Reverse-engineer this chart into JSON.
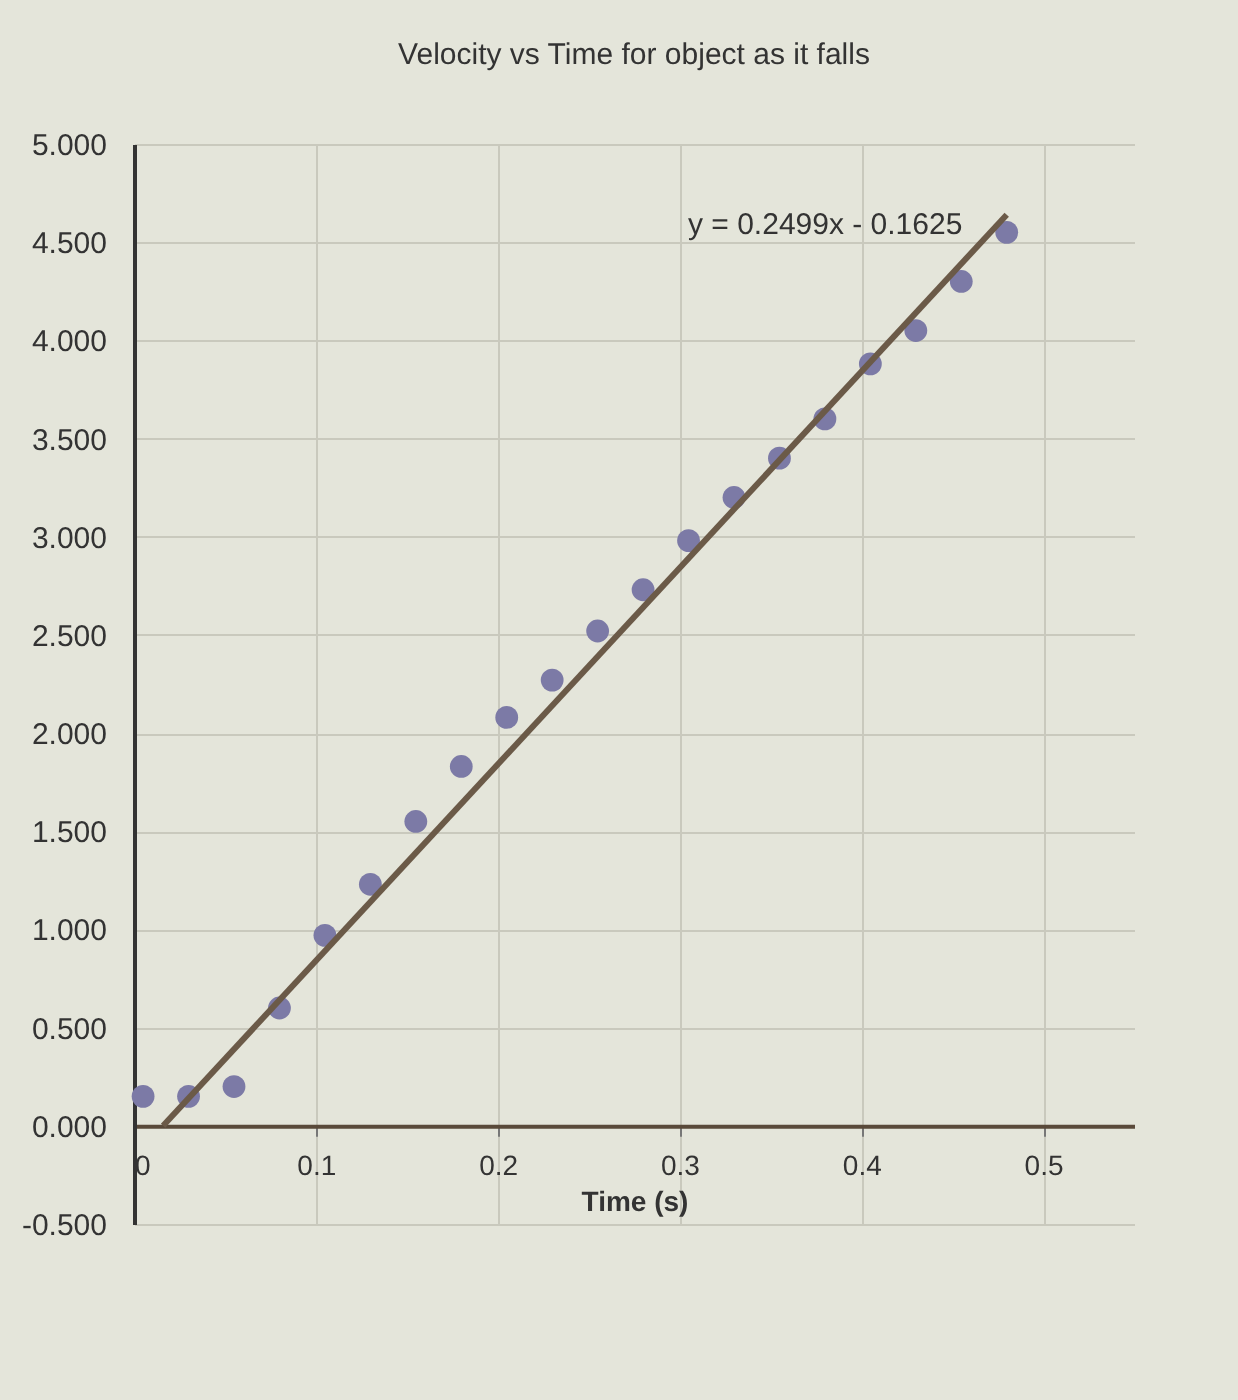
{
  "chart_data": {
    "type": "scatter",
    "title": "Velocity vs Time for object as it falls",
    "xlabel": "Time (s)",
    "x": [
      0.005,
      0.03,
      0.055,
      0.08,
      0.105,
      0.13,
      0.155,
      0.18,
      0.205,
      0.23,
      0.255,
      0.28,
      0.305,
      0.33,
      0.355,
      0.38,
      0.405,
      0.43,
      0.455,
      0.48
    ],
    "series": [
      {
        "color": "#7c7aa6",
        "marker": "circle",
        "values": [
          0.15,
          0.15,
          0.2,
          0.6,
          0.97,
          1.23,
          1.55,
          1.83,
          2.08,
          2.27,
          2.52,
          2.73,
          2.98,
          3.2,
          3.4,
          3.6,
          3.88,
          4.05,
          4.3,
          4.55
        ]
      },
      {
        "type": "line",
        "color": "#6b5a48",
        "x": [
          0.016,
          0.48
        ],
        "values": [
          0,
          4.64
        ]
      }
    ],
    "annotations": [
      {
        "text": "y = 0.2499x - 0.1625",
        "x": 0.46,
        "y": 4.55
      }
    ],
    "xlim": [
      0,
      0.55
    ],
    "xticks": [
      {
        "value": 0,
        "label": "0"
      },
      0.1,
      0.2,
      0.3,
      0.4,
      0.5
    ],
    "ylim": [
      -0.5,
      5.0
    ],
    "yticks": [
      {
        "value": -0.5,
        "label": "-0.500"
      },
      {
        "value": 0,
        "label": "0.000"
      },
      {
        "value": 0.5,
        "label": "0.500"
      },
      {
        "value": 1,
        "label": "1.000"
      },
      {
        "value": 1.5,
        "label": "1.500"
      },
      {
        "value": 2,
        "label": "2.000"
      },
      {
        "value": 2.5,
        "label": "2.500"
      },
      {
        "value": 3,
        "label": "3.000"
      },
      {
        "value": 3.5,
        "label": "3.500"
      },
      {
        "value": 4,
        "label": "4.000"
      },
      {
        "value": 4.5,
        "label": "4.500"
      },
      {
        "value": 5,
        "label": "5.000"
      }
    ],
    "grid": true,
    "line_style": "solid"
  }
}
